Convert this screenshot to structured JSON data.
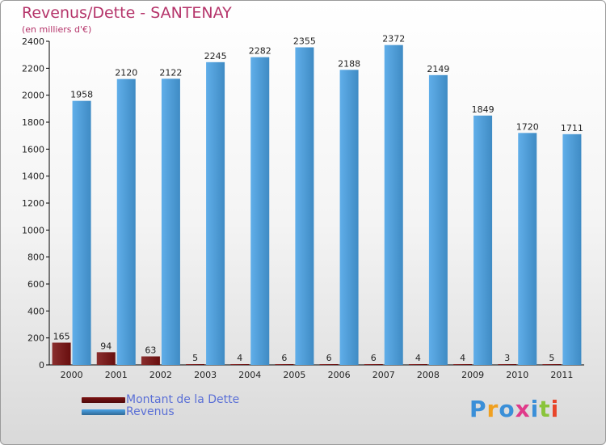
{
  "title": "Revenus/Dette - SANTENAY",
  "subtitle": "(en milliers d'€)",
  "chart_data": {
    "type": "bar",
    "categories": [
      "2000",
      "2001",
      "2002",
      "2003",
      "2004",
      "2005",
      "2006",
      "2007",
      "2008",
      "2009",
      "2010",
      "2011"
    ],
    "series": [
      {
        "name": "Montant de la Dette",
        "values": [
          165,
          94,
          63,
          5,
          4,
          6,
          6,
          6,
          4,
          4,
          3,
          5
        ],
        "color": "#7a1111"
      },
      {
        "name": "Revenus",
        "values": [
          1958,
          2120,
          2122,
          2245,
          2282,
          2355,
          2188,
          2372,
          2149,
          1849,
          1720,
          1711
        ],
        "color": "#4aa3e6"
      }
    ],
    "ylim": [
      0,
      2400
    ],
    "yticks": [
      0,
      200,
      400,
      600,
      800,
      1000,
      1200,
      1400,
      1600,
      1800,
      2000,
      2200,
      2400
    ],
    "grid": false,
    "legend_position": "bottom-left"
  },
  "legend": {
    "items": [
      {
        "label": "Montant de la Dette",
        "color": "#7a1111"
      },
      {
        "label": "Revenus",
        "color": "#4aa3e6"
      }
    ]
  },
  "logo": {
    "letters": [
      "P",
      "r",
      "o",
      "x",
      "i",
      "t",
      "i"
    ],
    "colors": [
      "#3a8fd8",
      "#f0a020",
      "#3a8fd8",
      "#e03a8a",
      "#3a8fd8",
      "#8ac43a",
      "#e8452a"
    ]
  }
}
